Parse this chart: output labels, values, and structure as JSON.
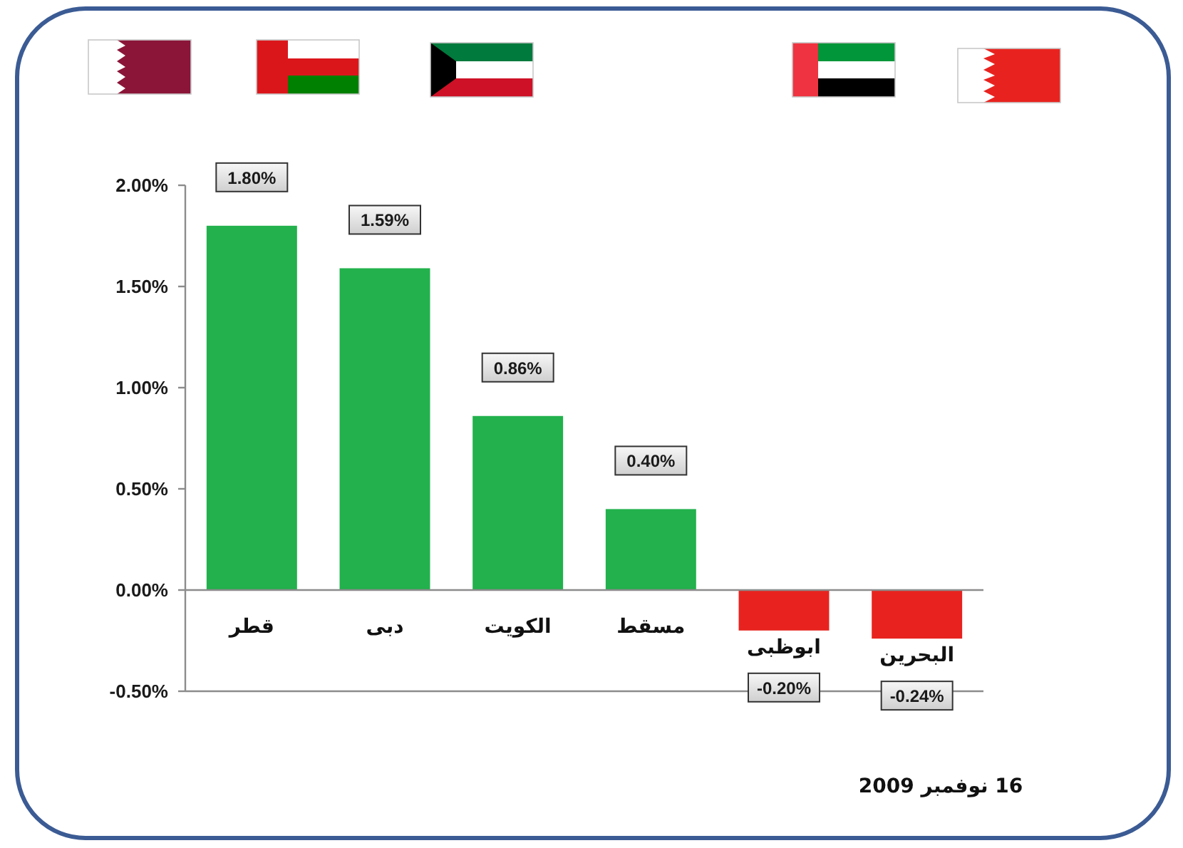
{
  "chart_data": {
    "type": "bar",
    "categories": [
      "قطر",
      "دبى",
      "الكويت",
      "مسقط",
      "ابوظبى",
      "البحرين"
    ],
    "values": [
      1.8,
      1.59,
      0.86,
      0.4,
      -0.2,
      -0.24
    ],
    "colors": [
      "#22b14c",
      "#22b14c",
      "#22b14c",
      "#22b14c",
      "#e8231f",
      "#e8231f"
    ],
    "value_labels": [
      "1.80%",
      "1.59%",
      "0.86%",
      "0.40%",
      "-0.20%",
      "-0.24%"
    ],
    "ylim": [
      -0.5,
      2.0
    ],
    "yticks": [
      {
        "value": -0.5,
        "label": "-0.50%"
      },
      {
        "value": 0,
        "label": "0.00%"
      },
      {
        "value": 0.5,
        "label": "0.50%"
      },
      {
        "value": 1.0,
        "label": "1.00%"
      },
      {
        "value": 1.5,
        "label": "1.50%"
      },
      {
        "value": 2.0,
        "label": "2.00%"
      }
    ],
    "grid": false,
    "annotations": [
      "16 نوفمبر 2009"
    ]
  }
}
